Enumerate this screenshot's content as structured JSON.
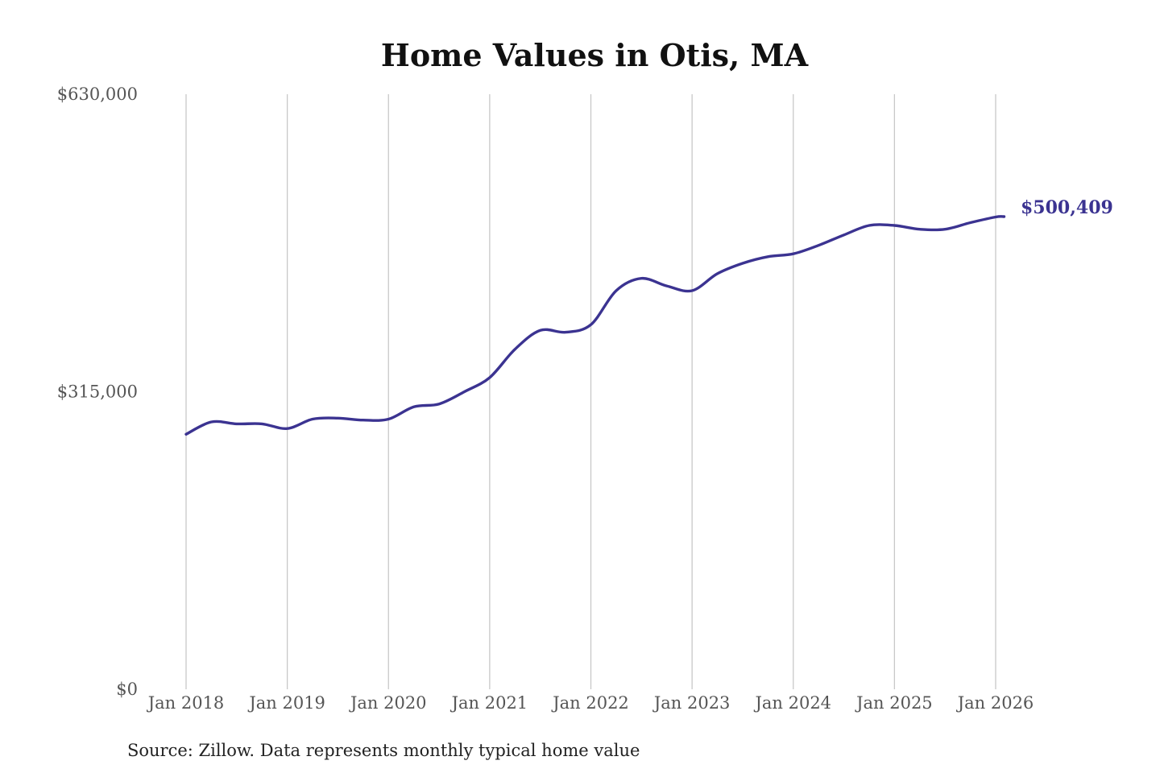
{
  "chart_data": {
    "type": "line",
    "title": "Home Values in Otis, MA",
    "source": "Source: Zillow. Data represents monthly typical home value",
    "ylim": [
      0,
      630000
    ],
    "y_ticks": [
      {
        "value": 0,
        "label": "$0"
      },
      {
        "value": 315000,
        "label": "$315,000"
      },
      {
        "value": 630000,
        "label": "$630,000"
      }
    ],
    "x_range": [
      "2018-01",
      "2026-02"
    ],
    "x_ticks": [
      {
        "date": "2018-01",
        "label": "Jan 2018"
      },
      {
        "date": "2019-01",
        "label": "Jan 2019"
      },
      {
        "date": "2020-01",
        "label": "Jan 2020"
      },
      {
        "date": "2021-01",
        "label": "Jan 2021"
      },
      {
        "date": "2022-01",
        "label": "Jan 2022"
      },
      {
        "date": "2023-01",
        "label": "Jan 2023"
      },
      {
        "date": "2024-01",
        "label": "Jan 2024"
      },
      {
        "date": "2025-01",
        "label": "Jan 2025"
      },
      {
        "date": "2026-01",
        "label": "Jan 2026"
      }
    ],
    "grid": "vertical",
    "line_color": "#3b3391",
    "end_label": "$500,409",
    "series": [
      {
        "points": [
          {
            "x": "2018-01",
            "y": 270000
          },
          {
            "x": "2018-04",
            "y": 283000
          },
          {
            "x": "2018-07",
            "y": 281000
          },
          {
            "x": "2018-10",
            "y": 281000
          },
          {
            "x": "2019-01",
            "y": 276000
          },
          {
            "x": "2019-04",
            "y": 286000
          },
          {
            "x": "2019-07",
            "y": 287000
          },
          {
            "x": "2019-10",
            "y": 285000
          },
          {
            "x": "2020-01",
            "y": 286000
          },
          {
            "x": "2020-04",
            "y": 299000
          },
          {
            "x": "2020-07",
            "y": 302000
          },
          {
            "x": "2020-10",
            "y": 315000
          },
          {
            "x": "2021-01",
            "y": 330000
          },
          {
            "x": "2021-04",
            "y": 360000
          },
          {
            "x": "2021-07",
            "y": 380000
          },
          {
            "x": "2021-10",
            "y": 378000
          },
          {
            "x": "2022-01",
            "y": 386000
          },
          {
            "x": "2022-04",
            "y": 422000
          },
          {
            "x": "2022-07",
            "y": 435000
          },
          {
            "x": "2022-10",
            "y": 427000
          },
          {
            "x": "2023-01",
            "y": 422000
          },
          {
            "x": "2023-04",
            "y": 440000
          },
          {
            "x": "2023-07",
            "y": 451000
          },
          {
            "x": "2023-10",
            "y": 458000
          },
          {
            "x": "2024-01",
            "y": 461000
          },
          {
            "x": "2024-04",
            "y": 470000
          },
          {
            "x": "2024-07",
            "y": 481000
          },
          {
            "x": "2024-10",
            "y": 491000
          },
          {
            "x": "2025-01",
            "y": 491000
          },
          {
            "x": "2025-04",
            "y": 487000
          },
          {
            "x": "2025-07",
            "y": 487000
          },
          {
            "x": "2025-10",
            "y": 494000
          },
          {
            "x": "2026-01",
            "y": 500000
          },
          {
            "x": "2026-02",
            "y": 500409
          }
        ]
      }
    ]
  }
}
